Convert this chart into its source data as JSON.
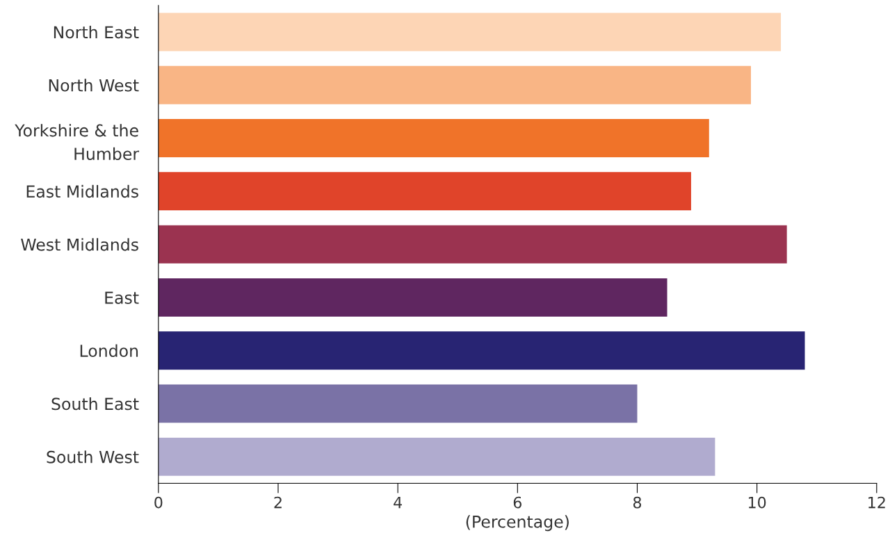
{
  "chart_data": {
    "type": "bar",
    "orientation": "horizontal",
    "xlabel": "(Percentage)",
    "categories": [
      "North East",
      "North West",
      "Yorkshire & the\nHumber",
      "East Midlands",
      "West Midlands",
      "East",
      "London",
      "South East",
      "South West"
    ],
    "values": [
      10.4,
      9.9,
      9.2,
      8.9,
      10.5,
      8.5,
      10.8,
      8.0,
      9.3
    ],
    "colors": [
      "#fdd5b5",
      "#f9b585",
      "#f07329",
      "#e0442a",
      "#9b3350",
      "#5f2660",
      "#282473",
      "#7a72a6",
      "#b0abcf"
    ],
    "xlim": [
      0,
      12
    ],
    "xticks": [
      0,
      2,
      4,
      6,
      8,
      10,
      12
    ],
    "grid": false,
    "legend": false
  }
}
